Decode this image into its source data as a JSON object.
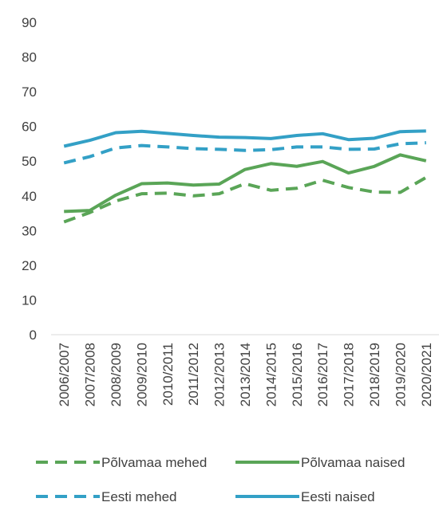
{
  "chart_data": {
    "type": "line",
    "categories": [
      "2006/2007",
      "2007/2008",
      "2008/2009",
      "2009/2010",
      "2010/2011",
      "2011/2012",
      "2012/2013",
      "2013/2014",
      "2014/2015",
      "2015/2016",
      "2016/2017",
      "2017/2018",
      "2018/2019",
      "2019/2020",
      "2020/2021"
    ],
    "series": [
      {
        "name": "Põlvamaa mehed",
        "color": "#5aa557",
        "dashed": true,
        "values": [
          32.5,
          35.2,
          38.5,
          40.6,
          40.8,
          40,
          40.6,
          43.5,
          41.6,
          42.2,
          44.5,
          42.4,
          41.1,
          41,
          45.3
        ]
      },
      {
        "name": "Põlvamaa naised",
        "color": "#5aa557",
        "dashed": false,
        "values": [
          35.5,
          35.8,
          40.2,
          43.5,
          43.7,
          43.1,
          43.4,
          47.6,
          49.3,
          48.5,
          49.9,
          46.6,
          48.5,
          51.8,
          50.1
        ]
      },
      {
        "name": "Eesti mehed",
        "color": "#33a0c6",
        "dashed": true,
        "values": [
          49.5,
          51.3,
          53.8,
          54.5,
          54.1,
          53.6,
          53.4,
          53.1,
          53.3,
          54.1,
          54.1,
          53.4,
          53.5,
          55,
          55.3
        ]
      },
      {
        "name": "Eesti naised",
        "color": "#33a0c6",
        "dashed": false,
        "values": [
          54.3,
          56,
          58.2,
          58.6,
          58,
          57.4,
          56.9,
          56.8,
          56.5,
          57.4,
          57.9,
          56.2,
          56.6,
          58.5,
          58.7
        ]
      }
    ],
    "ylim": [
      0,
      90
    ],
    "yticks": [
      0,
      10,
      20,
      30,
      40,
      50,
      60,
      70,
      80,
      90
    ],
    "grid": false,
    "legend": "bottom"
  }
}
